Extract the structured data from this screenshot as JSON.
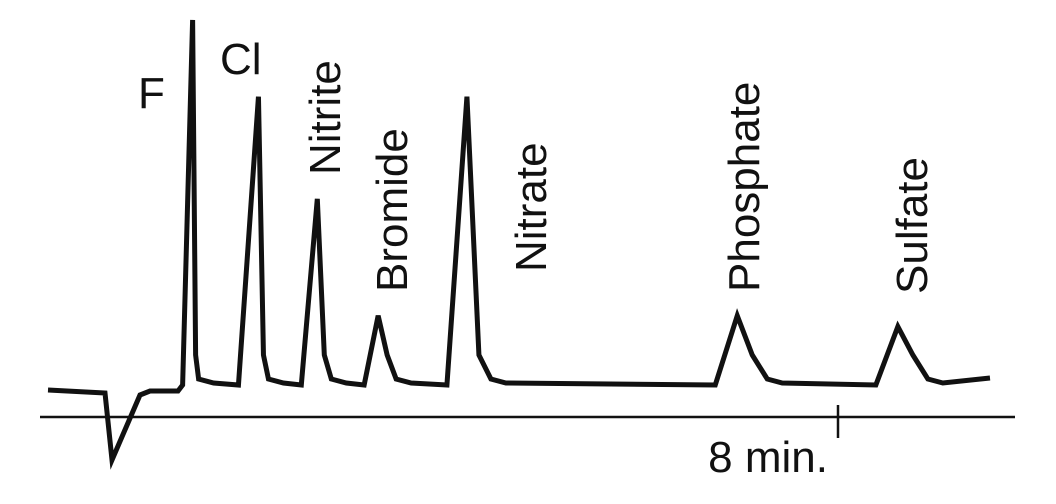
{
  "chart_data": {
    "type": "line",
    "title": "",
    "xlabel": "",
    "ylabel": "",
    "x_unit": "min",
    "x_tick_labels": [
      "8 min."
    ],
    "x_ticks": [
      8
    ],
    "grid": false,
    "legend": "none",
    "line_color": "#111111",
    "peaks": [
      {
        "label": "F",
        "time": 1.53,
        "relative_height": 100
      },
      {
        "label": "Cl",
        "time": 2.19,
        "relative_height": 79
      },
      {
        "label": "Nitrite",
        "time": 2.78,
        "relative_height": 51
      },
      {
        "label": "Bromide",
        "time": 3.39,
        "relative_height": 19
      },
      {
        "label": "Nitrate",
        "time": 4.28,
        "relative_height": 79
      },
      {
        "label": "Phosphate",
        "time": 6.99,
        "relative_height": 19
      },
      {
        "label": "Sulfate",
        "time": 8.6,
        "relative_height": 16
      }
    ]
  }
}
